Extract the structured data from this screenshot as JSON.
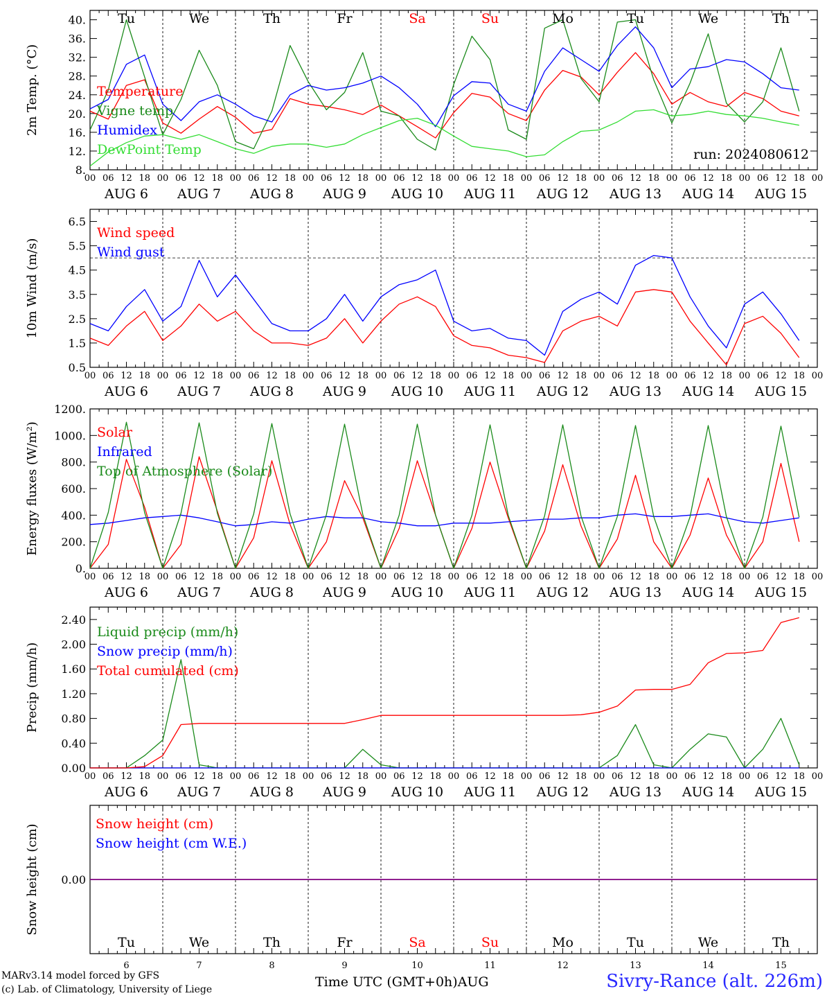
{
  "meta": {
    "run_label": "run: 2024080612",
    "credit_line1": "MARv3.14 model forced by GFS",
    "credit_line2": "(c) Lab. of Climatology, University of Liege",
    "time_axis_title": "Time UTC (GMT+0h)",
    "month_label": "AUG",
    "station": "Sivry-Rance (alt. 226m)",
    "colors": {
      "red": "#ff0000",
      "green": "#1a8a1a",
      "blue": "#0000ff",
      "lightgreen": "#33dd33",
      "purple": "#800080",
      "weekend": "#ff0000"
    }
  },
  "days": [
    {
      "weekday": "Tu",
      "date": "AUG 6",
      "day": "6",
      "weekend": false
    },
    {
      "weekday": "We",
      "date": "AUG 7",
      "day": "7",
      "weekend": false
    },
    {
      "weekday": "Th",
      "date": "AUG 8",
      "day": "8",
      "weekend": false
    },
    {
      "weekday": "Fr",
      "date": "AUG 9",
      "day": "9",
      "weekend": false
    },
    {
      "weekday": "Sa",
      "date": "AUG 10",
      "day": "10",
      "weekend": true
    },
    {
      "weekday": "Su",
      "date": "AUG 11",
      "day": "11",
      "weekend": true
    },
    {
      "weekday": "Mo",
      "date": "AUG 12",
      "day": "12",
      "weekend": false
    },
    {
      "weekday": "Tu",
      "date": "AUG 13",
      "day": "13",
      "weekend": false
    },
    {
      "weekday": "We",
      "date": "AUG 14",
      "day": "14",
      "weekend": false
    },
    {
      "weekday": "Th",
      "date": "AUG 15",
      "day": "15",
      "weekend": false
    }
  ],
  "hour_ticks": [
    "00",
    "06",
    "12",
    "18"
  ],
  "chart_data": [
    {
      "type": "line",
      "ylabel": "2m Temp. (°C)",
      "ylim": [
        8,
        42
      ],
      "yticks": [
        "8.",
        "12.",
        "16.",
        "20.",
        "24.",
        "28.",
        "32.",
        "36.",
        "40."
      ],
      "ytick_values": [
        8,
        12,
        16,
        20,
        24,
        28,
        32,
        36,
        40
      ],
      "x_hours": [
        0,
        6,
        12,
        18,
        24,
        30,
        36,
        42,
        48,
        54,
        60,
        66,
        72,
        78,
        84,
        90,
        96,
        102,
        108,
        114,
        120,
        126,
        132,
        138,
        144,
        150,
        156,
        162,
        168,
        174,
        180,
        186,
        192,
        198,
        204,
        210,
        216,
        222,
        228,
        234
      ],
      "series": [
        {
          "name": "Temperature",
          "color": "#ff0000",
          "values": [
            20.5,
            18.8,
            26,
            27.2,
            18,
            15.8,
            18.8,
            21.5,
            19.2,
            15.8,
            16.6,
            23.2,
            22,
            21.5,
            20.8,
            19.8,
            21.8,
            19.5,
            17.2,
            14.8,
            20.2,
            24.3,
            23.5,
            20,
            18.5,
            25,
            29.2,
            27.8,
            24,
            28.8,
            33,
            28.5,
            22,
            24.5,
            22.5,
            21.5,
            24.5,
            23.2,
            20.5,
            19.5
          ]
        },
        {
          "name": "Vigne temp",
          "color": "#1a8a1a",
          "values": [
            16.5,
            25,
            40,
            27.8,
            15.5,
            23,
            33.5,
            26,
            14,
            12.5,
            20.5,
            34.5,
            26.8,
            20.8,
            24.5,
            33,
            20.5,
            19.5,
            14.5,
            12.2,
            26.2,
            36.5,
            31.5,
            16.5,
            14.5,
            38.2,
            40,
            27.5,
            22.5,
            39.5,
            40,
            27.2,
            18,
            26.5,
            37,
            22.2,
            18.2,
            22.5,
            34,
            20.5
          ]
        },
        {
          "name": "Humidex",
          "color": "#0000ff",
          "values": [
            21,
            23,
            30.5,
            32.5,
            22,
            18.5,
            22.5,
            24,
            22,
            19.5,
            18.2,
            24,
            26,
            25,
            25.5,
            26.5,
            28,
            25.5,
            22,
            17.2,
            23.8,
            26.8,
            26.5,
            22,
            20.5,
            29,
            34,
            31.5,
            29,
            34.5,
            38.5,
            34,
            25.5,
            29.5,
            30,
            31.5,
            31,
            28.5,
            25.5,
            25
          ]
        },
        {
          "name": "DewPoint Temp",
          "color": "#33dd33",
          "values": [
            8.8,
            11.8,
            13.8,
            15.2,
            15.5,
            14.5,
            15.5,
            14,
            12.5,
            11.5,
            13,
            13.5,
            13.5,
            12.8,
            13.5,
            15.5,
            17,
            18.5,
            19,
            17.5,
            15.2,
            13,
            12.5,
            12,
            10.8,
            11.2,
            14,
            16.2,
            16.5,
            18.2,
            20.5,
            20.8,
            19.5,
            19.8,
            20.5,
            19.8,
            19.5,
            19,
            18.2,
            17.5
          ]
        }
      ]
    },
    {
      "type": "line",
      "ylabel": "10m Wind (m/s)",
      "ylim": [
        0.5,
        7.0
      ],
      "yticks": [
        "0.5",
        "1.5",
        "2.5",
        "3.5",
        "4.5",
        "5.5",
        "6.5"
      ],
      "ytick_values": [
        0.5,
        1.5,
        2.5,
        3.5,
        4.5,
        5.5,
        6.5
      ],
      "reference_line": 5,
      "x_hours": [
        0,
        6,
        12,
        18,
        24,
        30,
        36,
        42,
        48,
        54,
        60,
        66,
        72,
        78,
        84,
        90,
        96,
        102,
        108,
        114,
        120,
        126,
        132,
        138,
        144,
        150,
        156,
        162,
        168,
        174,
        180,
        186,
        192,
        198,
        204,
        210,
        216,
        222,
        228,
        234
      ],
      "series": [
        {
          "name": "Wind speed",
          "color": "#ff0000",
          "values": [
            1.7,
            1.4,
            2.2,
            2.8,
            1.6,
            2.2,
            3.1,
            2.4,
            2.8,
            2,
            1.5,
            1.5,
            1.4,
            1.7,
            2.5,
            1.5,
            2.4,
            3.1,
            3.4,
            3,
            1.8,
            1.4,
            1.3,
            1,
            0.9,
            0.7,
            2,
            2.4,
            2.6,
            2.2,
            3.6,
            3.7,
            3.6,
            2.4,
            1.5,
            0.6,
            2.3,
            2.6,
            1.9,
            0.9
          ]
        },
        {
          "name": "Wind gust",
          "color": "#0000ff",
          "values": [
            2.3,
            2,
            3,
            3.7,
            2.4,
            3,
            4.9,
            3.4,
            4.3,
            3.3,
            2.3,
            2,
            2,
            2.5,
            3.5,
            2.4,
            3.4,
            3.9,
            4.1,
            4.5,
            2.4,
            2,
            2.1,
            1.7,
            1.6,
            1,
            2.8,
            3.3,
            3.6,
            3.1,
            4.7,
            5.1,
            5,
            3.4,
            2.2,
            1.3,
            3.1,
            3.6,
            2.7,
            1.6
          ]
        }
      ]
    },
    {
      "type": "line",
      "ylabel": "Energy fluxes (W/m²)",
      "ylim": [
        0,
        1200
      ],
      "yticks": [
        "0.",
        "200.",
        "400.",
        "600.",
        "800.",
        "1000.",
        "1200."
      ],
      "ytick_values": [
        0,
        200,
        400,
        600,
        800,
        1000,
        1200
      ],
      "x_hours": [
        0,
        6,
        12,
        18,
        24,
        30,
        36,
        42,
        48,
        54,
        60,
        66,
        72,
        78,
        84,
        90,
        96,
        102,
        108,
        114,
        120,
        126,
        132,
        138,
        144,
        150,
        156,
        162,
        168,
        174,
        180,
        186,
        192,
        198,
        204,
        210,
        216,
        222,
        228,
        234
      ],
      "series": [
        {
          "name": "Solar",
          "color": "#ff0000",
          "values": [
            0,
            180,
            820,
            460,
            0,
            180,
            840,
            430,
            0,
            230,
            810,
            330,
            0,
            200,
            660,
            380,
            0,
            300,
            810,
            400,
            0,
            300,
            800,
            380,
            0,
            280,
            780,
            320,
            0,
            220,
            700,
            200,
            0,
            250,
            680,
            250,
            0,
            200,
            790,
            200
          ]
        },
        {
          "name": "Infrared",
          "color": "#0000ff",
          "values": [
            330,
            340,
            360,
            380,
            390,
            400,
            380,
            350,
            320,
            330,
            350,
            340,
            370,
            390,
            380,
            380,
            350,
            340,
            320,
            320,
            340,
            340,
            340,
            350,
            360,
            370,
            370,
            380,
            380,
            400,
            410,
            390,
            390,
            400,
            410,
            380,
            350,
            340,
            360,
            380
          ]
        },
        {
          "name": "Top of Atmosphere (Solar)",
          "color": "#1a8a1a",
          "values": [
            0,
            420,
            1100,
            420,
            0,
            415,
            1095,
            415,
            0,
            410,
            1090,
            410,
            0,
            405,
            1085,
            405,
            0,
            400,
            1085,
            400,
            0,
            398,
            1080,
            398,
            0,
            395,
            1080,
            395,
            0,
            390,
            1075,
            390,
            0,
            388,
            1075,
            388,
            0,
            385,
            1070,
            385
          ]
        }
      ]
    },
    {
      "type": "line",
      "ylabel": "Precip (mm/h)",
      "ylim": [
        0,
        2.6
      ],
      "yticks": [
        "0.00",
        "0.40",
        "0.80",
        "1.20",
        "1.60",
        "2.00",
        "2.40"
      ],
      "ytick_values": [
        0,
        0.4,
        0.8,
        1.2,
        1.6,
        2.0,
        2.4
      ],
      "x_hours": [
        0,
        6,
        12,
        18,
        24,
        30,
        36,
        42,
        48,
        54,
        60,
        66,
        72,
        78,
        84,
        90,
        96,
        102,
        108,
        114,
        120,
        126,
        132,
        138,
        144,
        150,
        156,
        162,
        168,
        174,
        180,
        186,
        192,
        198,
        204,
        210,
        216,
        222,
        228,
        234
      ],
      "series": [
        {
          "name": "Liquid precip (mm/h)",
          "color": "#1a8a1a",
          "values": [
            0,
            0,
            0,
            0.2,
            0.45,
            1.75,
            0.05,
            0,
            0,
            0,
            0,
            0,
            0,
            0,
            0,
            0.3,
            0.05,
            0,
            0,
            0,
            0,
            0,
            0,
            0,
            0,
            0,
            0,
            0,
            0,
            0.2,
            0.7,
            0.05,
            0,
            0.3,
            0.55,
            0.5,
            0,
            0.3,
            0.8,
            0.05
          ]
        },
        {
          "name": "Snow precip (mm/h)",
          "color": "#0000ff",
          "values": [
            0,
            0,
            0,
            0,
            0,
            0,
            0,
            0,
            0,
            0,
            0,
            0,
            0,
            0,
            0,
            0,
            0,
            0,
            0,
            0,
            0,
            0,
            0,
            0,
            0,
            0,
            0,
            0,
            0,
            0,
            0,
            0,
            0,
            0,
            0,
            0,
            0,
            0,
            0,
            0
          ]
        },
        {
          "name": "Total cumulated (cm)",
          "color": "#ff0000",
          "values": [
            0,
            0,
            0,
            0.02,
            0.2,
            0.7,
            0.72,
            0.72,
            0.72,
            0.72,
            0.72,
            0.72,
            0.72,
            0.72,
            0.72,
            0.78,
            0.85,
            0.85,
            0.85,
            0.85,
            0.85,
            0.85,
            0.85,
            0.85,
            0.85,
            0.85,
            0.85,
            0.86,
            0.9,
            1.0,
            1.26,
            1.27,
            1.27,
            1.35,
            1.7,
            1.85,
            1.86,
            1.9,
            2.35,
            2.43
          ]
        }
      ]
    },
    {
      "type": "line",
      "ylabel": "Snow height (cm)",
      "ylim": [
        -1,
        1
      ],
      "yticks": [
        "0.00"
      ],
      "ytick_values": [
        0
      ],
      "x_hours": [
        0,
        240
      ],
      "series": [
        {
          "name": "Snow height (cm)",
          "color": "#ff0000",
          "values": [
            0,
            0
          ]
        },
        {
          "name": "Snow height (cm W.E.)",
          "color": "#0000ff",
          "values": [
            0,
            0
          ]
        }
      ]
    }
  ]
}
